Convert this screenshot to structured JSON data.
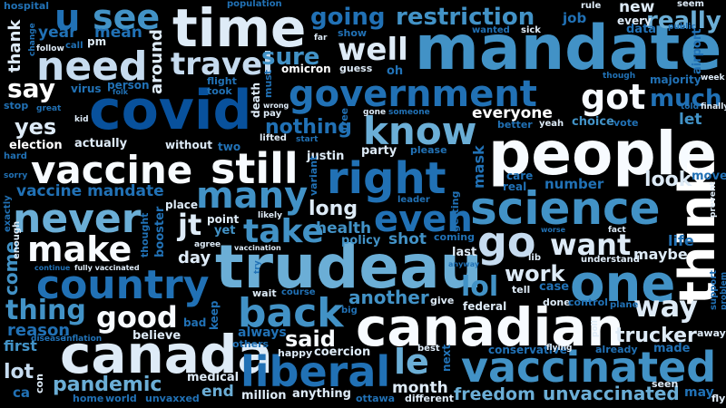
{
  "cloud": {
    "background": "#000000",
    "palette": [
      "#f7fbff",
      "#c6dbef",
      "#9ecae1",
      "#6baed6",
      "#4292c6",
      "#2171b5",
      "#08519c",
      "#08306b"
    ],
    "words": [
      {
        "text": "mandate",
        "color": "#4292c6"
      },
      {
        "text": "people",
        "color": "#f7fbff"
      },
      {
        "text": "covid",
        "color": "#08519c"
      },
      {
        "text": "trudeau",
        "color": "#6baed6"
      },
      {
        "text": "canadian",
        "color": "#f7fbff"
      },
      {
        "text": "canada",
        "color": "#deebf7"
      },
      {
        "text": "time",
        "color": "#deebf7"
      },
      {
        "text": "vaccinated",
        "color": "#4292c6"
      },
      {
        "text": "government",
        "color": "#2171b5"
      },
      {
        "text": "science",
        "color": "#4292c6"
      },
      {
        "text": "country",
        "color": "#2171b5"
      },
      {
        "text": "vaccine",
        "color": "#f7fbff"
      },
      {
        "text": "still",
        "color": "#f7fbff"
      },
      {
        "text": "liberal",
        "color": "#2171b5"
      },
      {
        "text": "right",
        "color": "#2171b5"
      },
      {
        "text": "back",
        "color": "#4292c6"
      },
      {
        "text": "one",
        "color": "#4292c6"
      },
      {
        "text": "think",
        "color": "#ffffff"
      },
      {
        "text": "never",
        "color": "#6baed6"
      },
      {
        "text": "know",
        "color": "#6baed6"
      },
      {
        "text": "need",
        "color": "#c6dbef"
      },
      {
        "text": "got",
        "color": "#f7fbff"
      },
      {
        "text": "go",
        "color": "#c6dbef"
      },
      {
        "text": "make",
        "color": "#f7fbff"
      },
      {
        "text": "many",
        "color": "#4292c6"
      },
      {
        "text": "even",
        "color": "#2171b5"
      },
      {
        "text": "take",
        "color": "#4292c6"
      },
      {
        "text": "want",
        "color": "#deebf7"
      },
      {
        "text": "well",
        "color": "#deebf7"
      },
      {
        "text": "travel",
        "color": "#c6dbef"
      },
      {
        "text": "see",
        "color": "#4292c6"
      },
      {
        "text": "u",
        "color": "#2171b5"
      },
      {
        "text": "way",
        "color": "#deebf7"
      },
      {
        "text": "good",
        "color": "#f7fbff"
      },
      {
        "text": "le",
        "color": "#6baed6"
      },
      {
        "text": "lol",
        "color": "#4292c6"
      },
      {
        "text": "jt",
        "color": "#deebf7"
      },
      {
        "text": "much",
        "color": "#2171b5"
      },
      {
        "text": "really",
        "color": "#6baed6"
      },
      {
        "text": "going",
        "color": "#2171b5"
      },
      {
        "text": "restriction",
        "color": "#4292c6"
      },
      {
        "text": "thing",
        "color": "#4292c6"
      },
      {
        "text": "pandemic",
        "color": "#6baed6"
      },
      {
        "text": "unvaccinated",
        "color": "#6baed6"
      },
      {
        "text": "freedom",
        "color": "#6baed6"
      },
      {
        "text": "work",
        "color": "#deebf7"
      },
      {
        "text": "said",
        "color": "#f7fbff"
      },
      {
        "text": "another",
        "color": "#4292c6"
      },
      {
        "text": "trucker",
        "color": "#deebf7"
      },
      {
        "text": "say",
        "color": "#ffffff"
      },
      {
        "text": "yes",
        "color": "#deebf7"
      },
      {
        "text": "sure",
        "color": "#4292c6"
      },
      {
        "text": "long",
        "color": "#deebf7"
      },
      {
        "text": "month",
        "color": "#deebf7"
      },
      {
        "text": "look",
        "color": "#deebf7"
      },
      {
        "text": "vaccine mandate",
        "color": "#2171b5"
      },
      {
        "text": "nothing",
        "color": "#2171b5"
      },
      {
        "text": "everyone",
        "color": "#ffffff"
      },
      {
        "text": "maybe",
        "color": "#deebf7"
      },
      {
        "text": "day",
        "color": "#deebf7"
      },
      {
        "text": "end",
        "color": "#6baed6"
      },
      {
        "text": "lot",
        "color": "#c6dbef"
      },
      {
        "text": "first",
        "color": "#4292c6"
      },
      {
        "text": "come",
        "color": "#4292c6"
      },
      {
        "text": "reason",
        "color": "#2171b5"
      },
      {
        "text": "year",
        "color": "#2171b5"
      },
      {
        "text": "mean",
        "color": "#2171b5"
      },
      {
        "text": "thank",
        "color": "#deebf7"
      },
      {
        "text": "around",
        "color": "#deebf7"
      },
      {
        "text": "shot",
        "color": "#4292c6"
      },
      {
        "text": "health",
        "color": "#4292c6"
      },
      {
        "text": "number",
        "color": "#2171b5"
      },
      {
        "text": "mask",
        "color": "#2171b5"
      },
      {
        "text": "let",
        "color": "#4292c6"
      },
      {
        "text": "life",
        "color": "#2171b5"
      },
      {
        "text": "job",
        "color": "#2171b5"
      },
      {
        "text": "new",
        "color": "#deebf7"
      },
      {
        "text": "every",
        "color": "#deebf7"
      },
      {
        "text": "data",
        "color": "#2171b5"
      },
      {
        "text": "choice",
        "color": "#4292c6"
      },
      {
        "text": "vote",
        "color": "#2171b5"
      },
      {
        "text": "majority",
        "color": "#2171b5"
      },
      {
        "text": "election",
        "color": "#ffffff"
      },
      {
        "text": "actually",
        "color": "#deebf7"
      },
      {
        "text": "without",
        "color": "#deebf7"
      },
      {
        "text": "justin",
        "color": "#deebf7"
      },
      {
        "text": "party",
        "color": "#deebf7"
      },
      {
        "text": "omicron",
        "color": "#ffffff"
      },
      {
        "text": "guess",
        "color": "#deebf7"
      },
      {
        "text": "oh",
        "color": "#2171b5"
      },
      {
        "text": "flight",
        "color": "#2171b5"
      },
      {
        "text": "took",
        "color": "#2171b5"
      },
      {
        "text": "virus",
        "color": "#2171b5"
      },
      {
        "text": "person",
        "color": "#2171b5"
      },
      {
        "text": "pm",
        "color": "#deebf7"
      },
      {
        "text": "call",
        "color": "#2171b5"
      },
      {
        "text": "hospital",
        "color": "#2171b5"
      },
      {
        "text": "population",
        "color": "#2171b5"
      },
      {
        "text": "show",
        "color": "#2171b5"
      },
      {
        "text": "wanted",
        "color": "#2171b5"
      },
      {
        "text": "sick",
        "color": "#deebf7"
      },
      {
        "text": "far",
        "color": "#deebf7"
      },
      {
        "text": "lib",
        "color": "#deebf7"
      },
      {
        "text": "rule",
        "color": "#deebf7"
      },
      {
        "text": "seem",
        "color": "#deebf7"
      },
      {
        "text": "public",
        "color": "#2171b5"
      },
      {
        "text": "airport",
        "color": "#2171b5"
      },
      {
        "text": "week",
        "color": "#deebf7"
      },
      {
        "text": "told",
        "color": "#2171b5"
      },
      {
        "text": "finally",
        "color": "#deebf7"
      },
      {
        "text": "though",
        "color": "#2171b5"
      },
      {
        "text": "move",
        "color": "#2171b5"
      },
      {
        "text": "prevent",
        "color": "#deebf7"
      },
      {
        "text": "care",
        "color": "#2171b5"
      },
      {
        "text": "real",
        "color": "#2171b5"
      },
      {
        "text": "better",
        "color": "#2171b5"
      },
      {
        "text": "yeah",
        "color": "#deebf7"
      },
      {
        "text": "place",
        "color": "#deebf7"
      },
      {
        "text": "point",
        "color": "#deebf7"
      },
      {
        "text": "yet",
        "color": "#4292c6"
      },
      {
        "text": "likely",
        "color": "#deebf7"
      },
      {
        "text": "agree",
        "color": "#deebf7"
      },
      {
        "text": "vaccination",
        "color": "#deebf7"
      },
      {
        "text": "booster",
        "color": "#2171b5"
      },
      {
        "text": "thought",
        "color": "#2171b5"
      },
      {
        "text": "enough",
        "color": "#deebf7"
      },
      {
        "text": "exactly",
        "color": "#2171b5"
      },
      {
        "text": "continue",
        "color": "#2171b5"
      },
      {
        "text": "fully vaccinated",
        "color": "#deebf7"
      },
      {
        "text": "policy",
        "color": "#4292c6"
      },
      {
        "text": "coming",
        "color": "#2171b5"
      },
      {
        "text": "last",
        "color": "#deebf7"
      },
      {
        "text": "anyway",
        "color": "#2171b5"
      },
      {
        "text": "tell",
        "color": "#deebf7"
      },
      {
        "text": "case",
        "color": "#2171b5"
      },
      {
        "text": "done",
        "color": "#deebf7"
      },
      {
        "text": "control",
        "color": "#2171b5"
      },
      {
        "text": "plane",
        "color": "#2171b5"
      },
      {
        "text": "understand",
        "color": "#deebf7"
      },
      {
        "text": "fact",
        "color": "#deebf7"
      },
      {
        "text": "worse",
        "color": "#2171b5"
      },
      {
        "text": "support",
        "color": "#2171b5"
      },
      {
        "text": "problem",
        "color": "#2171b5"
      },
      {
        "text": "wait",
        "color": "#deebf7"
      },
      {
        "text": "course",
        "color": "#2171b5"
      },
      {
        "text": "give",
        "color": "#deebf7"
      },
      {
        "text": "federal",
        "color": "#deebf7"
      },
      {
        "text": "conservative",
        "color": "#2171b5"
      },
      {
        "text": "flying",
        "color": "#deebf7"
      },
      {
        "text": "already",
        "color": "#2171b5"
      },
      {
        "text": "made",
        "color": "#2171b5"
      },
      {
        "text": "away",
        "color": "#deebf7"
      },
      {
        "text": "poll",
        "color": "#deebf7"
      },
      {
        "text": "best",
        "color": "#deebf7"
      },
      {
        "text": "next",
        "color": "#2171b5"
      },
      {
        "text": "seen",
        "color": "#deebf7"
      },
      {
        "text": "may",
        "color": "#2171b5"
      },
      {
        "text": "fly",
        "color": "#deebf7"
      },
      {
        "text": "different",
        "color": "#deebf7"
      },
      {
        "text": "ottawa",
        "color": "#2171b5"
      },
      {
        "text": "anything",
        "color": "#deebf7"
      },
      {
        "text": "million",
        "color": "#deebf7"
      },
      {
        "text": "unvaxxed",
        "color": "#2171b5"
      },
      {
        "text": "world",
        "color": "#2171b5"
      },
      {
        "text": "home",
        "color": "#2171b5"
      },
      {
        "text": "con",
        "color": "#deebf7"
      },
      {
        "text": "ca",
        "color": "#2171b5"
      },
      {
        "text": "medical",
        "color": "#deebf7"
      },
      {
        "text": "happy",
        "color": "#deebf7"
      },
      {
        "text": "coercion",
        "color": "#deebf7"
      },
      {
        "text": "others",
        "color": "#2171b5"
      },
      {
        "text": "always",
        "color": "#2171b5"
      },
      {
        "text": "believe",
        "color": "#deebf7"
      },
      {
        "text": "bad",
        "color": "#2171b5"
      },
      {
        "text": "keep",
        "color": "#2171b5"
      },
      {
        "text": "disease",
        "color": "#2171b5"
      },
      {
        "text": "inflation",
        "color": "#2171b5"
      },
      {
        "text": "big",
        "color": "#2171b5"
      },
      {
        "text": "try",
        "color": "#2171b5"
      },
      {
        "text": "hard",
        "color": "#2171b5"
      },
      {
        "text": "sorry",
        "color": "#2171b5"
      },
      {
        "text": "two",
        "color": "#2171b5"
      },
      {
        "text": "lifted",
        "color": "#deebf7"
      },
      {
        "text": "start",
        "color": "#2171b5"
      },
      {
        "text": "variant",
        "color": "#2171b5"
      },
      {
        "text": "please",
        "color": "#2171b5"
      },
      {
        "text": "leader",
        "color": "#2171b5"
      },
      {
        "text": "getting",
        "color": "#2171b5"
      },
      {
        "text": "free",
        "color": "#2171b5"
      },
      {
        "text": "pay",
        "color": "#deebf7"
      },
      {
        "text": "wrong",
        "color": "#deebf7"
      },
      {
        "text": "death",
        "color": "#deebf7"
      },
      {
        "text": "must",
        "color": "#2171b5"
      },
      {
        "text": "gone",
        "color": "#deebf7"
      },
      {
        "text": "someone",
        "color": "#2171b5"
      },
      {
        "text": "kid",
        "color": "#deebf7"
      },
      {
        "text": "great",
        "color": "#2171b5"
      },
      {
        "text": "stop",
        "color": "#2171b5"
      },
      {
        "text": "folk",
        "color": "#2171b5"
      },
      {
        "text": "follow",
        "color": "#deebf7"
      },
      {
        "text": "change",
        "color": "#2171b5"
      }
    ]
  }
}
